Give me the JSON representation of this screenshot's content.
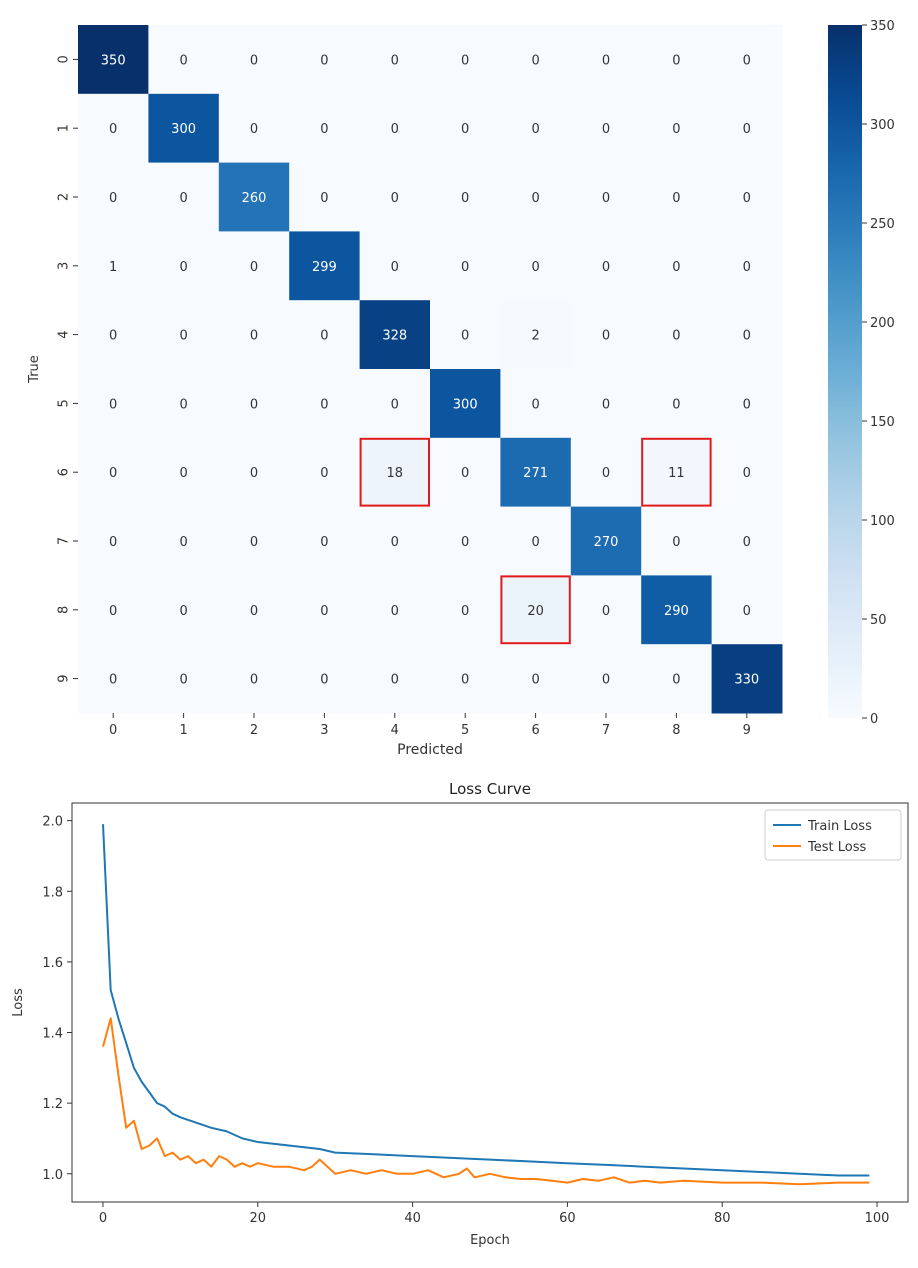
{
  "chart_data": [
    {
      "type": "heatmap",
      "title": "",
      "xlabel": "Predicted",
      "ylabel": "True",
      "x_categories": [
        "0",
        "1",
        "2",
        "3",
        "4",
        "5",
        "6",
        "7",
        "8",
        "9"
      ],
      "y_categories": [
        "0",
        "1",
        "2",
        "3",
        "4",
        "5",
        "6",
        "7",
        "8",
        "9"
      ],
      "values": [
        [
          350,
          0,
          0,
          0,
          0,
          0,
          0,
          0,
          0,
          0
        ],
        [
          0,
          300,
          0,
          0,
          0,
          0,
          0,
          0,
          0,
          0
        ],
        [
          0,
          0,
          260,
          0,
          0,
          0,
          0,
          0,
          0,
          0
        ],
        [
          1,
          0,
          0,
          299,
          0,
          0,
          0,
          0,
          0,
          0
        ],
        [
          0,
          0,
          0,
          0,
          328,
          0,
          2,
          0,
          0,
          0
        ],
        [
          0,
          0,
          0,
          0,
          0,
          300,
          0,
          0,
          0,
          0
        ],
        [
          0,
          0,
          0,
          0,
          18,
          0,
          271,
          0,
          11,
          0
        ],
        [
          0,
          0,
          0,
          0,
          0,
          0,
          0,
          270,
          0,
          0
        ],
        [
          0,
          0,
          0,
          0,
          0,
          0,
          20,
          0,
          290,
          0
        ],
        [
          0,
          0,
          0,
          0,
          0,
          0,
          0,
          0,
          0,
          330
        ]
      ],
      "colorbar": {
        "min": 0,
        "max": 350,
        "ticks": [
          0,
          50,
          100,
          150,
          200,
          250,
          300,
          350
        ]
      },
      "colormap": "Blues",
      "highlighted_cells": [
        {
          "row": 6,
          "col": 4
        },
        {
          "row": 6,
          "col": 8
        },
        {
          "row": 8,
          "col": 6
        }
      ],
      "highlight_color": "#e31a1c"
    },
    {
      "type": "line",
      "title": "Loss Curve",
      "xlabel": "Epoch",
      "ylabel": "Loss",
      "xlim": [
        -4,
        104
      ],
      "ylim": [
        0.92,
        2.05
      ],
      "xticks": [
        0,
        20,
        40,
        60,
        80,
        100
      ],
      "yticks": [
        1.0,
        1.2,
        1.4,
        1.6,
        1.8,
        2.0
      ],
      "legend": "top-right",
      "series": [
        {
          "name": "Train Loss",
          "color": "#1f77b4",
          "x": [
            0,
            1,
            2,
            3,
            4,
            5,
            6,
            7,
            8,
            9,
            10,
            12,
            14,
            16,
            18,
            20,
            22,
            24,
            26,
            28,
            30,
            35,
            40,
            45,
            50,
            55,
            60,
            65,
            70,
            75,
            80,
            85,
            90,
            95,
            99
          ],
          "y": [
            1.99,
            1.52,
            1.44,
            1.37,
            1.3,
            1.26,
            1.23,
            1.2,
            1.19,
            1.17,
            1.16,
            1.145,
            1.13,
            1.12,
            1.1,
            1.09,
            1.085,
            1.08,
            1.075,
            1.07,
            1.06,
            1.055,
            1.05,
            1.045,
            1.04,
            1.035,
            1.03,
            1.025,
            1.02,
            1.015,
            1.01,
            1.005,
            1.0,
            0.995,
            0.995
          ]
        },
        {
          "name": "Test Loss",
          "color": "#ff7f0e",
          "x": [
            0,
            1,
            2,
            3,
            4,
            5,
            6,
            7,
            8,
            9,
            10,
            11,
            12,
            13,
            14,
            15,
            16,
            17,
            18,
            19,
            20,
            22,
            24,
            26,
            27,
            28,
            29,
            30,
            32,
            34,
            36,
            38,
            40,
            42,
            44,
            46,
            47,
            48,
            50,
            52,
            54,
            56,
            58,
            60,
            62,
            64,
            66,
            68,
            70,
            72,
            75,
            80,
            85,
            90,
            95,
            99
          ],
          "y": [
            1.36,
            1.44,
            1.28,
            1.13,
            1.15,
            1.07,
            1.08,
            1.1,
            1.05,
            1.06,
            1.04,
            1.05,
            1.03,
            1.04,
            1.02,
            1.05,
            1.04,
            1.02,
            1.03,
            1.02,
            1.03,
            1.02,
            1.02,
            1.01,
            1.02,
            1.04,
            1.02,
            1.0,
            1.01,
            1.0,
            1.01,
            1.0,
            1.0,
            1.01,
            0.99,
            1.0,
            1.015,
            0.99,
            1.0,
            0.99,
            0.985,
            0.985,
            0.98,
            0.975,
            0.985,
            0.98,
            0.99,
            0.975,
            0.98,
            0.975,
            0.98,
            0.975,
            0.975,
            0.97,
            0.975,
            0.975
          ]
        }
      ]
    }
  ]
}
